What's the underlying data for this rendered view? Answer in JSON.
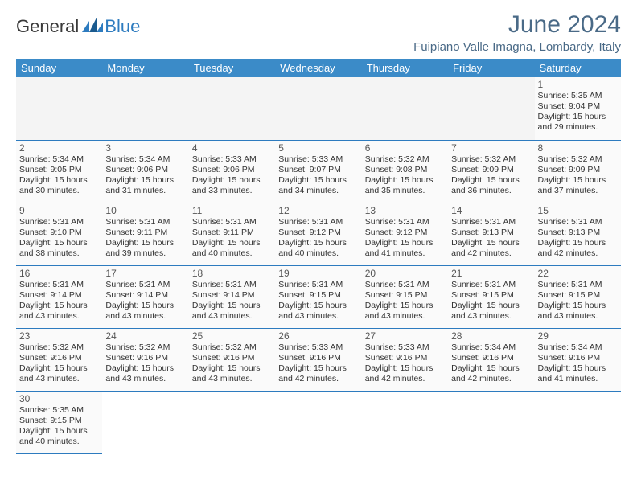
{
  "brand": {
    "part1": "General",
    "part2": "Blue"
  },
  "title": "June 2024",
  "location": "Fuipiano Valle Imagna, Lombardy, Italy",
  "colors": {
    "header_bg": "#3b8bc8",
    "header_text": "#ffffff",
    "title_color": "#4a6a87",
    "border_color": "#2d7bbf",
    "cell_bg": "#fafafa",
    "empty_bg": "#f4f4f4",
    "text_color": "#333333"
  },
  "typography": {
    "title_fontsize": 30,
    "location_fontsize": 15,
    "th_fontsize": 13,
    "daynum_fontsize": 12,
    "cell_fontsize": 10.5
  },
  "day_headers": [
    "Sunday",
    "Monday",
    "Tuesday",
    "Wednesday",
    "Thursday",
    "Friday",
    "Saturday"
  ],
  "weeks": [
    [
      null,
      null,
      null,
      null,
      null,
      null,
      {
        "n": "1",
        "sr": "Sunrise: 5:35 AM",
        "ss": "Sunset: 9:04 PM",
        "d1": "Daylight: 15 hours",
        "d2": "and 29 minutes."
      }
    ],
    [
      {
        "n": "2",
        "sr": "Sunrise: 5:34 AM",
        "ss": "Sunset: 9:05 PM",
        "d1": "Daylight: 15 hours",
        "d2": "and 30 minutes."
      },
      {
        "n": "3",
        "sr": "Sunrise: 5:34 AM",
        "ss": "Sunset: 9:06 PM",
        "d1": "Daylight: 15 hours",
        "d2": "and 31 minutes."
      },
      {
        "n": "4",
        "sr": "Sunrise: 5:33 AM",
        "ss": "Sunset: 9:06 PM",
        "d1": "Daylight: 15 hours",
        "d2": "and 33 minutes."
      },
      {
        "n": "5",
        "sr": "Sunrise: 5:33 AM",
        "ss": "Sunset: 9:07 PM",
        "d1": "Daylight: 15 hours",
        "d2": "and 34 minutes."
      },
      {
        "n": "6",
        "sr": "Sunrise: 5:32 AM",
        "ss": "Sunset: 9:08 PM",
        "d1": "Daylight: 15 hours",
        "d2": "and 35 minutes."
      },
      {
        "n": "7",
        "sr": "Sunrise: 5:32 AM",
        "ss": "Sunset: 9:09 PM",
        "d1": "Daylight: 15 hours",
        "d2": "and 36 minutes."
      },
      {
        "n": "8",
        "sr": "Sunrise: 5:32 AM",
        "ss": "Sunset: 9:09 PM",
        "d1": "Daylight: 15 hours",
        "d2": "and 37 minutes."
      }
    ],
    [
      {
        "n": "9",
        "sr": "Sunrise: 5:31 AM",
        "ss": "Sunset: 9:10 PM",
        "d1": "Daylight: 15 hours",
        "d2": "and 38 minutes."
      },
      {
        "n": "10",
        "sr": "Sunrise: 5:31 AM",
        "ss": "Sunset: 9:11 PM",
        "d1": "Daylight: 15 hours",
        "d2": "and 39 minutes."
      },
      {
        "n": "11",
        "sr": "Sunrise: 5:31 AM",
        "ss": "Sunset: 9:11 PM",
        "d1": "Daylight: 15 hours",
        "d2": "and 40 minutes."
      },
      {
        "n": "12",
        "sr": "Sunrise: 5:31 AM",
        "ss": "Sunset: 9:12 PM",
        "d1": "Daylight: 15 hours",
        "d2": "and 40 minutes."
      },
      {
        "n": "13",
        "sr": "Sunrise: 5:31 AM",
        "ss": "Sunset: 9:12 PM",
        "d1": "Daylight: 15 hours",
        "d2": "and 41 minutes."
      },
      {
        "n": "14",
        "sr": "Sunrise: 5:31 AM",
        "ss": "Sunset: 9:13 PM",
        "d1": "Daylight: 15 hours",
        "d2": "and 42 minutes."
      },
      {
        "n": "15",
        "sr": "Sunrise: 5:31 AM",
        "ss": "Sunset: 9:13 PM",
        "d1": "Daylight: 15 hours",
        "d2": "and 42 minutes."
      }
    ],
    [
      {
        "n": "16",
        "sr": "Sunrise: 5:31 AM",
        "ss": "Sunset: 9:14 PM",
        "d1": "Daylight: 15 hours",
        "d2": "and 43 minutes."
      },
      {
        "n": "17",
        "sr": "Sunrise: 5:31 AM",
        "ss": "Sunset: 9:14 PM",
        "d1": "Daylight: 15 hours",
        "d2": "and 43 minutes."
      },
      {
        "n": "18",
        "sr": "Sunrise: 5:31 AM",
        "ss": "Sunset: 9:14 PM",
        "d1": "Daylight: 15 hours",
        "d2": "and 43 minutes."
      },
      {
        "n": "19",
        "sr": "Sunrise: 5:31 AM",
        "ss": "Sunset: 9:15 PM",
        "d1": "Daylight: 15 hours",
        "d2": "and 43 minutes."
      },
      {
        "n": "20",
        "sr": "Sunrise: 5:31 AM",
        "ss": "Sunset: 9:15 PM",
        "d1": "Daylight: 15 hours",
        "d2": "and 43 minutes."
      },
      {
        "n": "21",
        "sr": "Sunrise: 5:31 AM",
        "ss": "Sunset: 9:15 PM",
        "d1": "Daylight: 15 hours",
        "d2": "and 43 minutes."
      },
      {
        "n": "22",
        "sr": "Sunrise: 5:31 AM",
        "ss": "Sunset: 9:15 PM",
        "d1": "Daylight: 15 hours",
        "d2": "and 43 minutes."
      }
    ],
    [
      {
        "n": "23",
        "sr": "Sunrise: 5:32 AM",
        "ss": "Sunset: 9:16 PM",
        "d1": "Daylight: 15 hours",
        "d2": "and 43 minutes."
      },
      {
        "n": "24",
        "sr": "Sunrise: 5:32 AM",
        "ss": "Sunset: 9:16 PM",
        "d1": "Daylight: 15 hours",
        "d2": "and 43 minutes."
      },
      {
        "n": "25",
        "sr": "Sunrise: 5:32 AM",
        "ss": "Sunset: 9:16 PM",
        "d1": "Daylight: 15 hours",
        "d2": "and 43 minutes."
      },
      {
        "n": "26",
        "sr": "Sunrise: 5:33 AM",
        "ss": "Sunset: 9:16 PM",
        "d1": "Daylight: 15 hours",
        "d2": "and 42 minutes."
      },
      {
        "n": "27",
        "sr": "Sunrise: 5:33 AM",
        "ss": "Sunset: 9:16 PM",
        "d1": "Daylight: 15 hours",
        "d2": "and 42 minutes."
      },
      {
        "n": "28",
        "sr": "Sunrise: 5:34 AM",
        "ss": "Sunset: 9:16 PM",
        "d1": "Daylight: 15 hours",
        "d2": "and 42 minutes."
      },
      {
        "n": "29",
        "sr": "Sunrise: 5:34 AM",
        "ss": "Sunset: 9:16 PM",
        "d1": "Daylight: 15 hours",
        "d2": "and 41 minutes."
      }
    ],
    [
      {
        "n": "30",
        "sr": "Sunrise: 5:35 AM",
        "ss": "Sunset: 9:15 PM",
        "d1": "Daylight: 15 hours",
        "d2": "and 40 minutes."
      },
      null,
      null,
      null,
      null,
      null,
      null
    ]
  ]
}
